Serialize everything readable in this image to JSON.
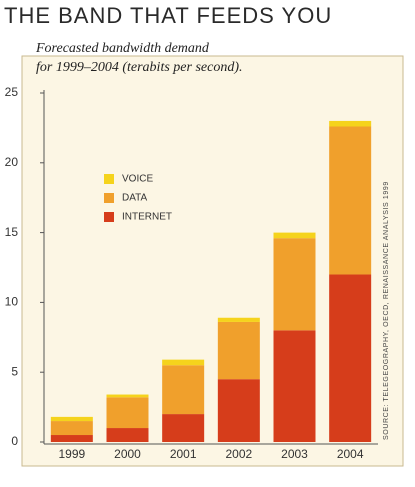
{
  "chart_data": {
    "type": "bar",
    "stacked": true,
    "title": "THE BAND THAT FEEDS YOU",
    "subtitle": [
      "Forecasted bandwidth demand",
      "for 1999–2004 (terabits per second)."
    ],
    "source": "SOURCE: TELEGEOGRAPHY, OECD, RENAISSANCE ANALYSIS 1999",
    "categories": [
      "1999",
      "2000",
      "2001",
      "2002",
      "2003",
      "2004"
    ],
    "series": [
      {
        "name": "INTERNET",
        "color": "#d63d1b",
        "values": [
          0.5,
          1,
          2,
          4.5,
          8,
          12
        ]
      },
      {
        "name": "DATA",
        "color": "#f0a02c",
        "values": [
          1,
          2.2,
          3.5,
          4.1,
          6.6,
          10.6
        ]
      },
      {
        "name": "VOICE",
        "color": "#f5d31c",
        "values": [
          0.3,
          0.2,
          0.4,
          0.3,
          0.4,
          0.4
        ]
      }
    ],
    "ylim": [
      0,
      25
    ],
    "yticks": [
      0,
      5,
      10,
      15,
      20,
      25
    ],
    "grid": false
  }
}
